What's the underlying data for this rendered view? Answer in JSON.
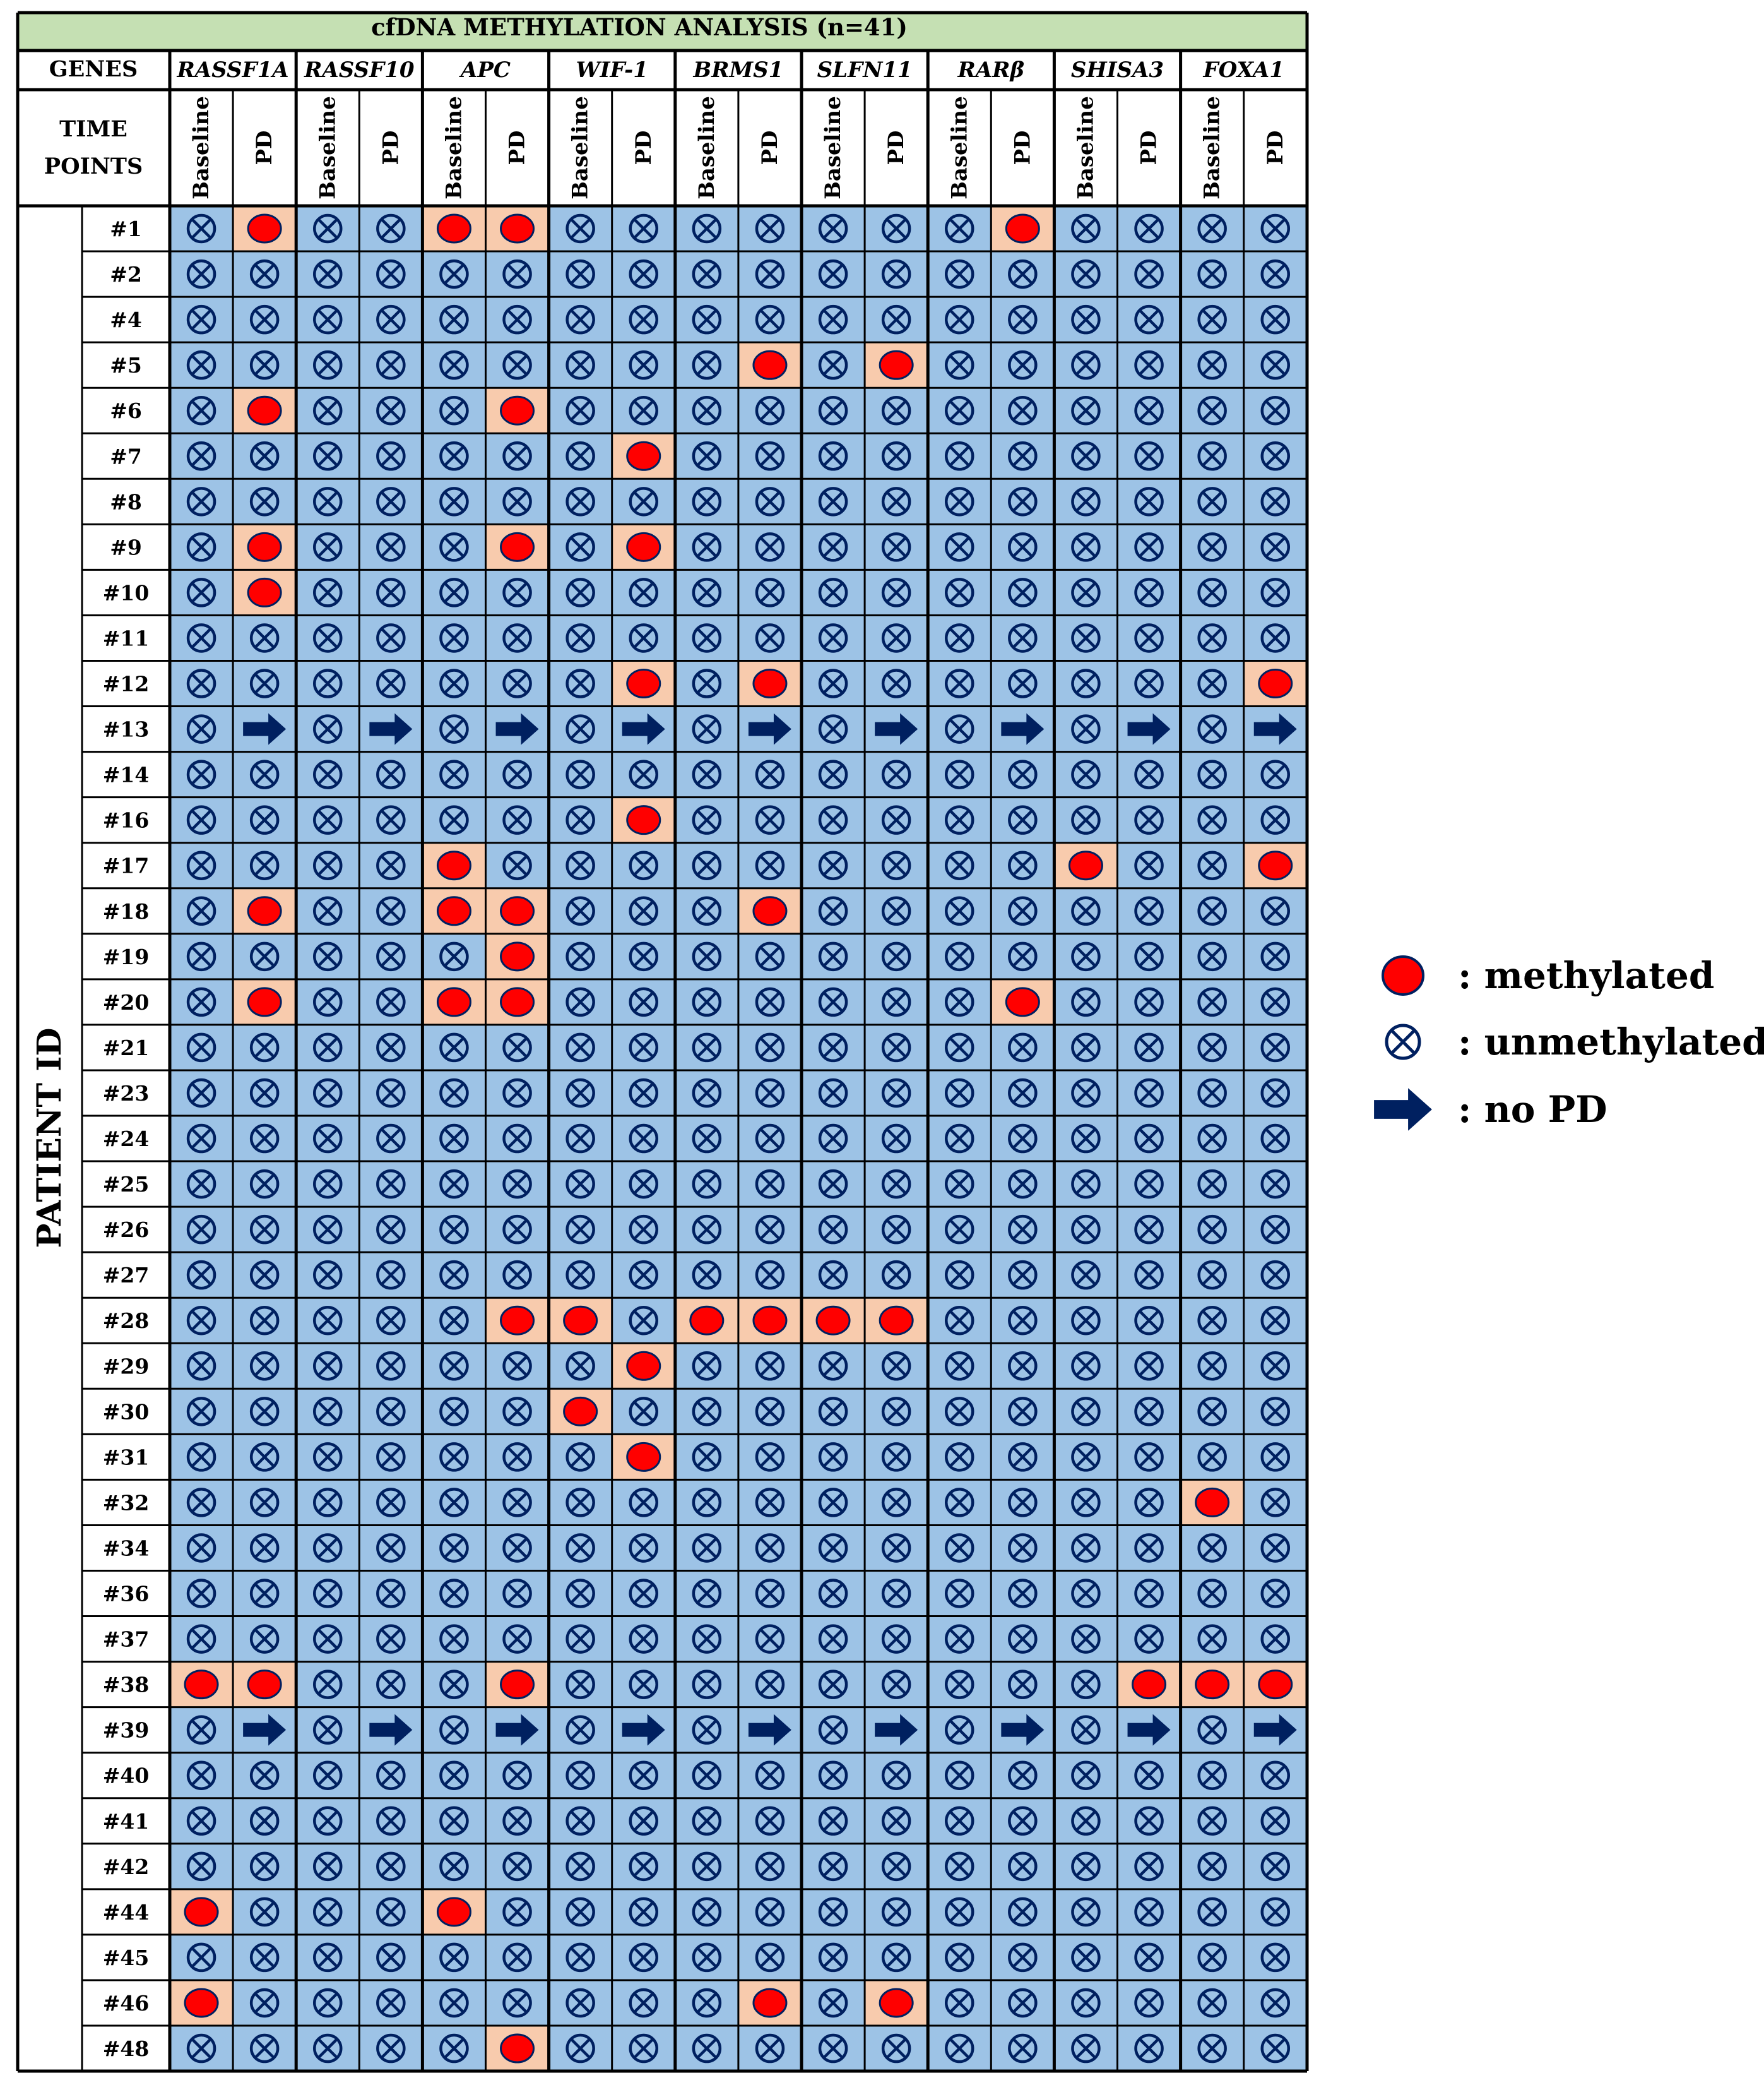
{
  "chart_data": {
    "type": "table",
    "title": "cfDNA METHYLATION ANALYSIS (n=41)",
    "genes_header": "GENES",
    "time_points_header": [
      "TIME",
      "POINTS"
    ],
    "row_axis_label": "PATIENT ID",
    "genes": [
      "RASSF1A",
      "RASSF10",
      "APC",
      "WIF-1",
      "BRMS1",
      "SLFN11",
      "RARβ",
      "SHISA3",
      "FOXA1"
    ],
    "time_points": [
      "Baseline",
      "PD"
    ],
    "status_codes": {
      "u": "unmethylated",
      "m": "methylated",
      "n": "no PD"
    },
    "legend": [
      {
        "code": "m",
        "label": ": methylated"
      },
      {
        "code": "u",
        "label": ": unmethylated"
      },
      {
        "code": "n",
        "label": ": no PD"
      }
    ],
    "rows": [
      {
        "id": "#1",
        "cells": [
          "u",
          "m",
          "u",
          "u",
          "m",
          "m",
          "u",
          "u",
          "u",
          "u",
          "u",
          "u",
          "u",
          "m",
          "u",
          "u",
          "u",
          "u"
        ]
      },
      {
        "id": "#2",
        "cells": [
          "u",
          "u",
          "u",
          "u",
          "u",
          "u",
          "u",
          "u",
          "u",
          "u",
          "u",
          "u",
          "u",
          "u",
          "u",
          "u",
          "u",
          "u"
        ]
      },
      {
        "id": "#4",
        "cells": [
          "u",
          "u",
          "u",
          "u",
          "u",
          "u",
          "u",
          "u",
          "u",
          "u",
          "u",
          "u",
          "u",
          "u",
          "u",
          "u",
          "u",
          "u"
        ]
      },
      {
        "id": "#5",
        "cells": [
          "u",
          "u",
          "u",
          "u",
          "u",
          "u",
          "u",
          "u",
          "u",
          "m",
          "u",
          "m",
          "u",
          "u",
          "u",
          "u",
          "u",
          "u"
        ]
      },
      {
        "id": "#6",
        "cells": [
          "u",
          "m",
          "u",
          "u",
          "u",
          "m",
          "u",
          "u",
          "u",
          "u",
          "u",
          "u",
          "u",
          "u",
          "u",
          "u",
          "u",
          "u"
        ]
      },
      {
        "id": "#7",
        "cells": [
          "u",
          "u",
          "u",
          "u",
          "u",
          "u",
          "u",
          "m",
          "u",
          "u",
          "u",
          "u",
          "u",
          "u",
          "u",
          "u",
          "u",
          "u"
        ]
      },
      {
        "id": "#8",
        "cells": [
          "u",
          "u",
          "u",
          "u",
          "u",
          "u",
          "u",
          "u",
          "u",
          "u",
          "u",
          "u",
          "u",
          "u",
          "u",
          "u",
          "u",
          "u"
        ]
      },
      {
        "id": "#9",
        "cells": [
          "u",
          "m",
          "u",
          "u",
          "u",
          "m",
          "u",
          "m",
          "u",
          "u",
          "u",
          "u",
          "u",
          "u",
          "u",
          "u",
          "u",
          "u"
        ]
      },
      {
        "id": "#10",
        "cells": [
          "u",
          "m",
          "u",
          "u",
          "u",
          "u",
          "u",
          "u",
          "u",
          "u",
          "u",
          "u",
          "u",
          "u",
          "u",
          "u",
          "u",
          "u"
        ]
      },
      {
        "id": "#11",
        "cells": [
          "u",
          "u",
          "u",
          "u",
          "u",
          "u",
          "u",
          "u",
          "u",
          "u",
          "u",
          "u",
          "u",
          "u",
          "u",
          "u",
          "u",
          "u"
        ]
      },
      {
        "id": "#12",
        "cells": [
          "u",
          "u",
          "u",
          "u",
          "u",
          "u",
          "u",
          "m",
          "u",
          "m",
          "u",
          "u",
          "u",
          "u",
          "u",
          "u",
          "u",
          "m"
        ]
      },
      {
        "id": "#13",
        "cells": [
          "u",
          "n",
          "u",
          "n",
          "u",
          "n",
          "u",
          "n",
          "u",
          "n",
          "u",
          "n",
          "u",
          "n",
          "u",
          "n",
          "u",
          "n"
        ]
      },
      {
        "id": "#14",
        "cells": [
          "u",
          "u",
          "u",
          "u",
          "u",
          "u",
          "u",
          "u",
          "u",
          "u",
          "u",
          "u",
          "u",
          "u",
          "u",
          "u",
          "u",
          "u"
        ]
      },
      {
        "id": "#16",
        "cells": [
          "u",
          "u",
          "u",
          "u",
          "u",
          "u",
          "u",
          "m",
          "u",
          "u",
          "u",
          "u",
          "u",
          "u",
          "u",
          "u",
          "u",
          "u"
        ]
      },
      {
        "id": "#17",
        "cells": [
          "u",
          "u",
          "u",
          "u",
          "m",
          "u",
          "u",
          "u",
          "u",
          "u",
          "u",
          "u",
          "u",
          "u",
          "m",
          "u",
          "u",
          "m"
        ]
      },
      {
        "id": "#18",
        "cells": [
          "u",
          "m",
          "u",
          "u",
          "m",
          "m",
          "u",
          "u",
          "u",
          "m",
          "u",
          "u",
          "u",
          "u",
          "u",
          "u",
          "u",
          "u"
        ]
      },
      {
        "id": "#19",
        "cells": [
          "u",
          "u",
          "u",
          "u",
          "u",
          "m",
          "u",
          "u",
          "u",
          "u",
          "u",
          "u",
          "u",
          "u",
          "u",
          "u",
          "u",
          "u"
        ]
      },
      {
        "id": "#20",
        "cells": [
          "u",
          "m",
          "u",
          "u",
          "m",
          "m",
          "u",
          "u",
          "u",
          "u",
          "u",
          "u",
          "u",
          "m",
          "u",
          "u",
          "u",
          "u"
        ]
      },
      {
        "id": "#21",
        "cells": [
          "u",
          "u",
          "u",
          "u",
          "u",
          "u",
          "u",
          "u",
          "u",
          "u",
          "u",
          "u",
          "u",
          "u",
          "u",
          "u",
          "u",
          "u"
        ]
      },
      {
        "id": "#23",
        "cells": [
          "u",
          "u",
          "u",
          "u",
          "u",
          "u",
          "u",
          "u",
          "u",
          "u",
          "u",
          "u",
          "u",
          "u",
          "u",
          "u",
          "u",
          "u"
        ]
      },
      {
        "id": "#24",
        "cells": [
          "u",
          "u",
          "u",
          "u",
          "u",
          "u",
          "u",
          "u",
          "u",
          "u",
          "u",
          "u",
          "u",
          "u",
          "u",
          "u",
          "u",
          "u"
        ]
      },
      {
        "id": "#25",
        "cells": [
          "u",
          "u",
          "u",
          "u",
          "u",
          "u",
          "u",
          "u",
          "u",
          "u",
          "u",
          "u",
          "u",
          "u",
          "u",
          "u",
          "u",
          "u"
        ]
      },
      {
        "id": "#26",
        "cells": [
          "u",
          "u",
          "u",
          "u",
          "u",
          "u",
          "u",
          "u",
          "u",
          "u",
          "u",
          "u",
          "u",
          "u",
          "u",
          "u",
          "u",
          "u"
        ]
      },
      {
        "id": "#27",
        "cells": [
          "u",
          "u",
          "u",
          "u",
          "u",
          "u",
          "u",
          "u",
          "u",
          "u",
          "u",
          "u",
          "u",
          "u",
          "u",
          "u",
          "u",
          "u"
        ]
      },
      {
        "id": "#28",
        "cells": [
          "u",
          "u",
          "u",
          "u",
          "u",
          "m",
          "m",
          "u",
          "m",
          "m",
          "m",
          "m",
          "u",
          "u",
          "u",
          "u",
          "u",
          "u"
        ]
      },
      {
        "id": "#29",
        "cells": [
          "u",
          "u",
          "u",
          "u",
          "u",
          "u",
          "u",
          "m",
          "u",
          "u",
          "u",
          "u",
          "u",
          "u",
          "u",
          "u",
          "u",
          "u"
        ]
      },
      {
        "id": "#30",
        "cells": [
          "u",
          "u",
          "u",
          "u",
          "u",
          "u",
          "m",
          "u",
          "u",
          "u",
          "u",
          "u",
          "u",
          "u",
          "u",
          "u",
          "u",
          "u"
        ]
      },
      {
        "id": "#31",
        "cells": [
          "u",
          "u",
          "u",
          "u",
          "u",
          "u",
          "u",
          "m",
          "u",
          "u",
          "u",
          "u",
          "u",
          "u",
          "u",
          "u",
          "u",
          "u"
        ]
      },
      {
        "id": "#32",
        "cells": [
          "u",
          "u",
          "u",
          "u",
          "u",
          "u",
          "u",
          "u",
          "u",
          "u",
          "u",
          "u",
          "u",
          "u",
          "u",
          "u",
          "m",
          "u"
        ]
      },
      {
        "id": "#34",
        "cells": [
          "u",
          "u",
          "u",
          "u",
          "u",
          "u",
          "u",
          "u",
          "u",
          "u",
          "u",
          "u",
          "u",
          "u",
          "u",
          "u",
          "u",
          "u"
        ]
      },
      {
        "id": "#36",
        "cells": [
          "u",
          "u",
          "u",
          "u",
          "u",
          "u",
          "u",
          "u",
          "u",
          "u",
          "u",
          "u",
          "u",
          "u",
          "u",
          "u",
          "u",
          "u"
        ]
      },
      {
        "id": "#37",
        "cells": [
          "u",
          "u",
          "u",
          "u",
          "u",
          "u",
          "u",
          "u",
          "u",
          "u",
          "u",
          "u",
          "u",
          "u",
          "u",
          "u",
          "u",
          "u"
        ]
      },
      {
        "id": "#38",
        "cells": [
          "m",
          "m",
          "u",
          "u",
          "u",
          "m",
          "u",
          "u",
          "u",
          "u",
          "u",
          "u",
          "u",
          "u",
          "u",
          "m",
          "m",
          "m"
        ]
      },
      {
        "id": "#39",
        "cells": [
          "u",
          "n",
          "u",
          "n",
          "u",
          "n",
          "u",
          "n",
          "u",
          "n",
          "u",
          "n",
          "u",
          "n",
          "u",
          "n",
          "u",
          "n"
        ]
      },
      {
        "id": "#40",
        "cells": [
          "u",
          "u",
          "u",
          "u",
          "u",
          "u",
          "u",
          "u",
          "u",
          "u",
          "u",
          "u",
          "u",
          "u",
          "u",
          "u",
          "u",
          "u"
        ]
      },
      {
        "id": "#41",
        "cells": [
          "u",
          "u",
          "u",
          "u",
          "u",
          "u",
          "u",
          "u",
          "u",
          "u",
          "u",
          "u",
          "u",
          "u",
          "u",
          "u",
          "u",
          "u"
        ]
      },
      {
        "id": "#42",
        "cells": [
          "u",
          "u",
          "u",
          "u",
          "u",
          "u",
          "u",
          "u",
          "u",
          "u",
          "u",
          "u",
          "u",
          "u",
          "u",
          "u",
          "u",
          "u"
        ]
      },
      {
        "id": "#44",
        "cells": [
          "m",
          "u",
          "u",
          "u",
          "m",
          "u",
          "u",
          "u",
          "u",
          "u",
          "u",
          "u",
          "u",
          "u",
          "u",
          "u",
          "u",
          "u"
        ]
      },
      {
        "id": "#45",
        "cells": [
          "u",
          "u",
          "u",
          "u",
          "u",
          "u",
          "u",
          "u",
          "u",
          "u",
          "u",
          "u",
          "u",
          "u",
          "u",
          "u",
          "u",
          "u"
        ]
      },
      {
        "id": "#46",
        "cells": [
          "m",
          "u",
          "u",
          "u",
          "u",
          "u",
          "u",
          "u",
          "u",
          "m",
          "u",
          "m",
          "u",
          "u",
          "u",
          "u",
          "u",
          "u"
        ]
      },
      {
        "id": "#48",
        "cells": [
          "u",
          "u",
          "u",
          "u",
          "u",
          "m",
          "u",
          "u",
          "u",
          "u",
          "u",
          "u",
          "u",
          "u",
          "u",
          "u",
          "u",
          "u"
        ]
      }
    ]
  },
  "colors": {
    "title_band": "#c5e0b3",
    "cell_blue": "#9dc3e6",
    "cell_peach": "#f8cbad",
    "methylated_fill": "#ff0000",
    "mark_navy": "#002060",
    "grid": "#000000"
  },
  "icons": {
    "methylated": "red-dot-icon",
    "unmethylated": "circled-x-icon",
    "no_pd": "right-arrow-icon"
  }
}
